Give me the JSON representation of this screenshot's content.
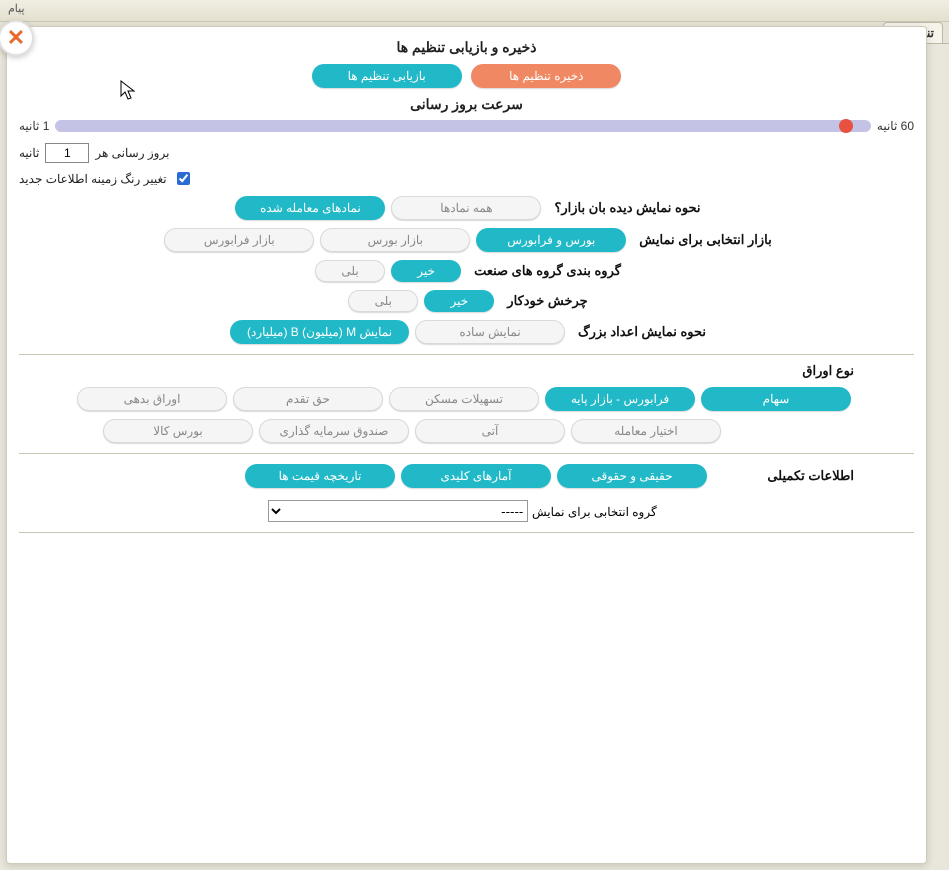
{
  "top": {
    "linkText": "پیام"
  },
  "tab": {
    "title": "تنظیمات"
  },
  "saveRestore": {
    "title": "ذخیره و بازیابی تنظیم ها",
    "save": "ذخیره تنظیم ها",
    "restore": "بازیابی تنظیم ها"
  },
  "refresh": {
    "title": "سرعت بروز رسانی",
    "maxLabel": "60 ثانیه",
    "minLabel": "1 ثانیه",
    "valuePercentLeft": 97,
    "everyPrefix": "بروز رسانی هر",
    "everySuffix": "ثانیه",
    "inputValue": "1",
    "bgColorChange": "تغییر رنگ زمینه اطلاعات جدید",
    "bgChecked": true
  },
  "displayMode": {
    "label": "نحوه نمایش دیده بان بازار؟",
    "options": [
      {
        "text": "همه نمادها",
        "style": "gray"
      },
      {
        "text": "نمادهای معامله شده",
        "style": "teal"
      }
    ]
  },
  "marketSelect": {
    "label": "بازار انتخابی برای نمایش",
    "options": [
      {
        "text": "بورس و فرابورس",
        "style": "teal"
      },
      {
        "text": "بازار بورس",
        "style": "gray"
      },
      {
        "text": "بازار فرابورس",
        "style": "gray"
      }
    ]
  },
  "industryGroup": {
    "label": "گروه بندی گروه های صنعت",
    "options": [
      {
        "text": "خیر",
        "style": "teal"
      },
      {
        "text": "بلی",
        "style": "gray"
      }
    ]
  },
  "autorotate": {
    "label": "چرخش خودکار",
    "options": [
      {
        "text": "خیر",
        "style": "teal"
      },
      {
        "text": "بلی",
        "style": "gray"
      }
    ]
  },
  "bigNumbers": {
    "label": "نحوه نمایش اعداد بزرگ",
    "options": [
      {
        "text": "نمایش ساده",
        "style": "gray"
      },
      {
        "text": "نمایش M (میلیون) B (میلیارد)",
        "style": "teal"
      }
    ]
  },
  "securityTypes": {
    "label": "نوع اوراق",
    "row1": [
      {
        "text": "سهام",
        "style": "teal"
      },
      {
        "text": "فرابورس - بازار پایه",
        "style": "teal"
      },
      {
        "text": "تسهیلات مسکن",
        "style": "gray"
      },
      {
        "text": "حق تقدم",
        "style": "gray"
      },
      {
        "text": "اوراق بدهی",
        "style": "gray"
      }
    ],
    "row2": [
      {
        "text": "اختیار معامله",
        "style": "gray"
      },
      {
        "text": "آتی",
        "style": "gray"
      },
      {
        "text": "صندوق سرمایه گذاری",
        "style": "gray"
      },
      {
        "text": "بورس کالا",
        "style": "gray"
      }
    ]
  },
  "extraInfo": {
    "label": "اطلاعات تکمیلی",
    "options": [
      {
        "text": "حقیقی و حقوقی",
        "style": "teal"
      },
      {
        "text": "آمارهای کلیدی",
        "style": "teal"
      },
      {
        "text": "تاریخچه قیمت ها",
        "style": "teal"
      }
    ]
  },
  "groupSelect": {
    "label": "گروه انتخابی برای نمایش",
    "selected": "-----"
  },
  "colors": {
    "teal": "#21b9c7",
    "orange": "#ef8863",
    "sliderTrack": "#c4c3e6",
    "sliderThumb": "#e8503f",
    "pageBg": "#e9e6db"
  }
}
